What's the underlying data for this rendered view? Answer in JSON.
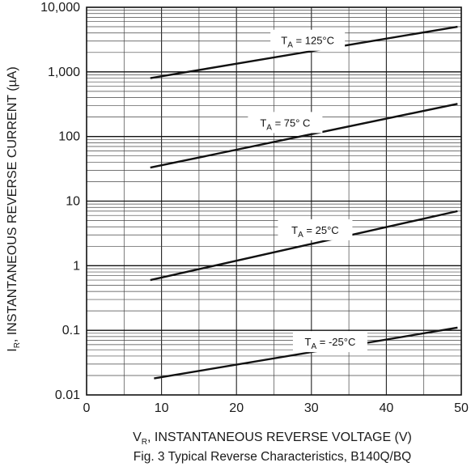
{
  "chart_data": {
    "type": "line",
    "title": "",
    "caption": "Fig. 3 Typical Reverse Characteristics, B140Q/BQ",
    "xlabel": {
      "main": "V",
      "sub": "R",
      "rest": ", INSTANTANEOUS REVERSE VOLTAGE (V)"
    },
    "ylabel": {
      "main": "I",
      "sub": "R",
      "rest": ", INSTANTANEOUS REVERSE CURRENT (µA)"
    },
    "xlim": [
      0,
      50
    ],
    "ylim": [
      0.01,
      10000
    ],
    "yscale": "log",
    "grid": true,
    "x_ticks": [
      "0",
      "10",
      "20",
      "30",
      "40",
      "50"
    ],
    "y_ticks": [
      "0.01",
      "0.1",
      "1",
      "10",
      "100",
      "1,000",
      "10,000"
    ],
    "series": [
      {
        "name": {
          "pre": "T",
          "sub": "A",
          "post": " = 125°C"
        },
        "x": [
          8.5,
          49.5
        ],
        "y": [
          800,
          5000
        ]
      },
      {
        "name": {
          "pre": "T",
          "sub": "A",
          "post": " = 75° C"
        },
        "x": [
          8.5,
          49.5
        ],
        "y": [
          33,
          320
        ]
      },
      {
        "name": {
          "pre": "T",
          "sub": "A",
          "post": " = 25°C"
        },
        "x": [
          8.5,
          49.5
        ],
        "y": [
          0.6,
          7
        ]
      },
      {
        "name": {
          "pre": "T",
          "sub": "A",
          "post": " = -25°C"
        },
        "x": [
          9.0,
          49.5
        ],
        "y": [
          0.018,
          0.11
        ]
      }
    ]
  }
}
